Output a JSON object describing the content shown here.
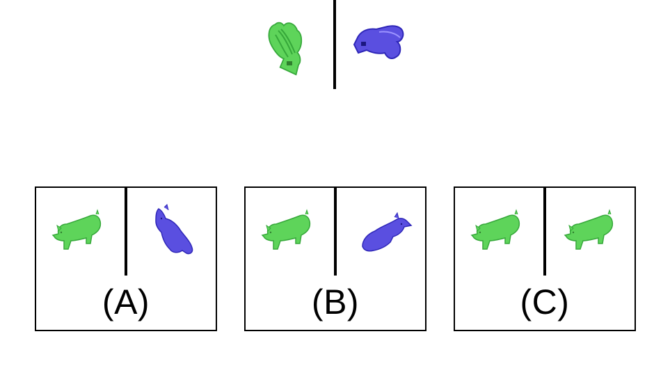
{
  "colors": {
    "green": "#5ed45a",
    "green_dark": "#36a83a",
    "blue": "#5a4fe0",
    "blue_dark": "#2f27b8",
    "line": "#000000",
    "background": "#ffffff"
  },
  "reference": {
    "left_shape": "green-rotated-fish-shape",
    "right_shape": "blue-rotated-fish-shape"
  },
  "options": [
    {
      "label": "(A)",
      "left_shape": "green-pig-icon",
      "right_shape": "blue-pig-icon"
    },
    {
      "label": "(B)",
      "left_shape": "green-pig-icon",
      "right_shape": "blue-pig-icon"
    },
    {
      "label": "(C)",
      "left_shape": "green-pig-icon",
      "right_shape": "green-pig-icon"
    }
  ]
}
